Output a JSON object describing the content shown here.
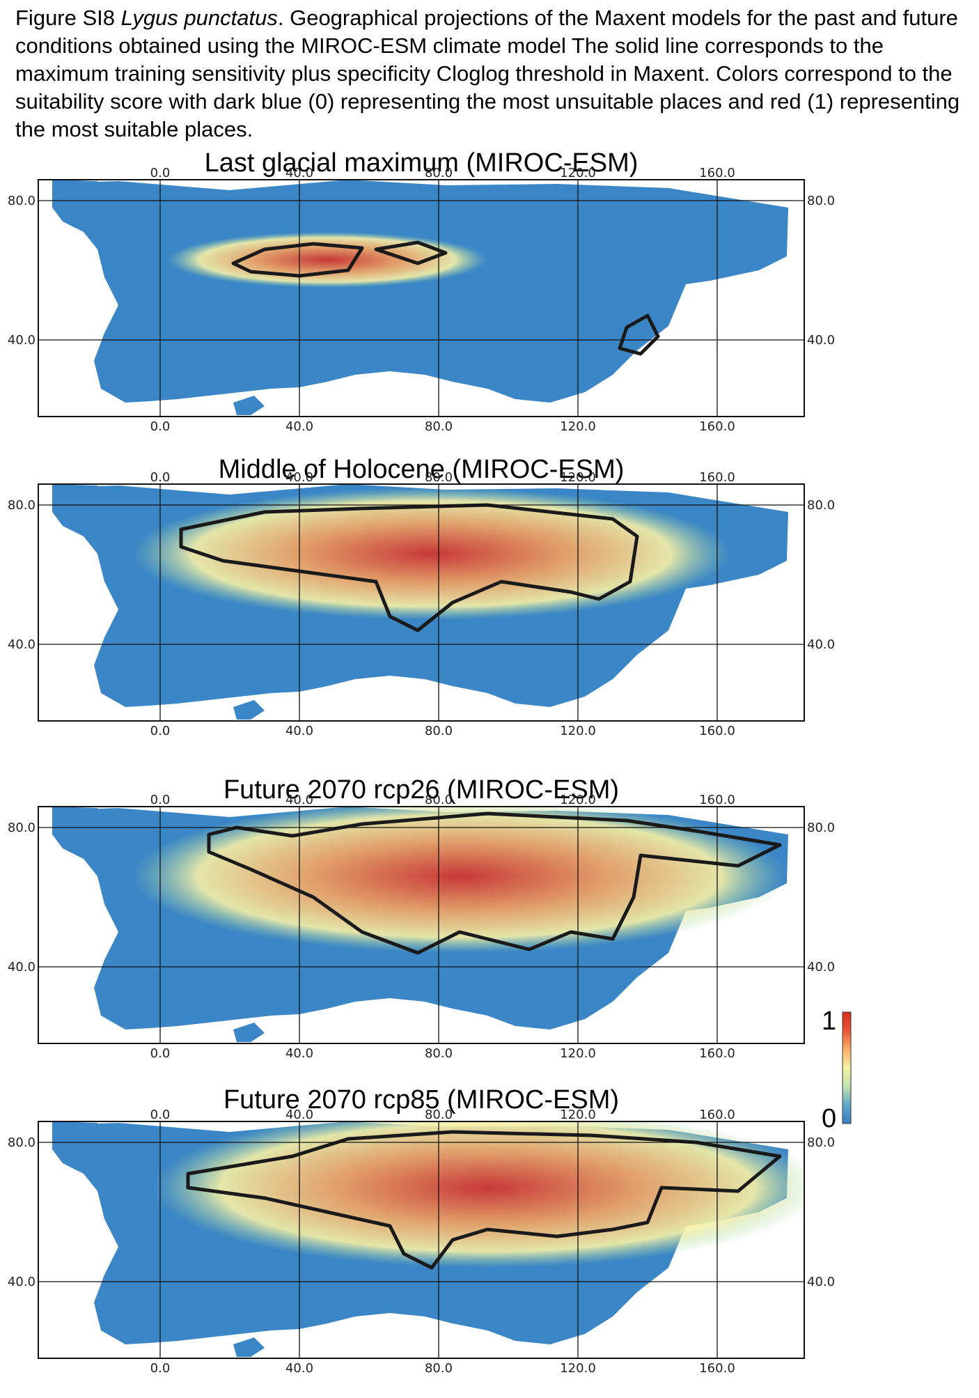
{
  "caption": {
    "figure_label": "Figure SI8",
    "species": "Lygus punctatus",
    "text": ". Geographical projections of the Maxent models for the past and future conditions obtained using the MIROC-ESM climate model The solid line corresponds to the maximum training sensitivity plus specificity Cloglog threshold in Maxent. Colors correspond to the suitability score with dark blue (0) representing the most unsuitable places and red (1) representing the most suitable places."
  },
  "axes": {
    "x_ticks": [
      "0.0",
      "40.0",
      "80.0",
      "120.0",
      "160.0"
    ],
    "y_ticks": [
      "80.0",
      "40.0"
    ]
  },
  "panels": [
    {
      "title": "Last glacial maximum (MIROC-ESM)"
    },
    {
      "title": "Middle of Holocene (MIROC-ESM)"
    },
    {
      "title": "Future 2070 rcp26 (MIROC-ESM)"
    },
    {
      "title": "Future 2070 rcp85 (MIROC-ESM)"
    }
  ],
  "colorbar": {
    "max_label": "1",
    "min_label": "0",
    "colors": [
      "#3a7fc4",
      "#5fa8c8",
      "#bfe2b0",
      "#f6f0a6",
      "#f7b066",
      "#e8553a",
      "#d7301f"
    ]
  },
  "colors": {
    "ocean": "#ffffff",
    "land_low": "#3b86c6",
    "land_mid": "#9fd3a2",
    "land_high": "#f4a261",
    "land_max": "#d73027",
    "threshold_line": "#1a1a1a"
  }
}
